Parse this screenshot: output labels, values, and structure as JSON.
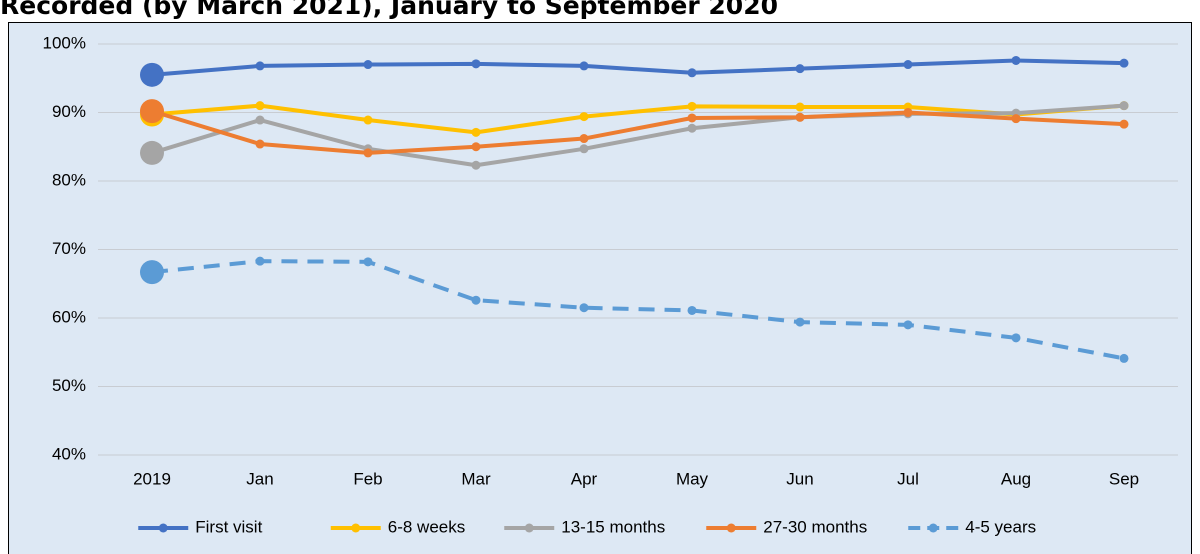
{
  "chart_data": {
    "type": "line",
    "title": "Recorded (by March 2021), January to September 2020",
    "categories": [
      "2019",
      "Jan",
      "Feb",
      "Mar",
      "Apr",
      "May",
      "Jun",
      "Jul",
      "Aug",
      "Sep"
    ],
    "series": [
      {
        "name": "First visit",
        "color": "#4472c4",
        "values": [
          95.5,
          96.8,
          97.0,
          97.1,
          96.8,
          95.8,
          96.4,
          97.0,
          97.6,
          97.2
        ]
      },
      {
        "name": "6-8 weeks",
        "color": "#ffc000",
        "values": [
          89.7,
          91.0,
          88.9,
          87.1,
          89.4,
          90.9,
          90.8,
          90.8,
          89.7,
          91.0
        ]
      },
      {
        "name": "13-15 months",
        "color": "#a5a5a5",
        "values": [
          84.1,
          88.9,
          84.7,
          82.3,
          84.7,
          87.7,
          89.3,
          89.8,
          89.9,
          91.0
        ]
      },
      {
        "name": "27-30 months",
        "color": "#ed7d31",
        "values": [
          90.2,
          85.4,
          84.1,
          85.0,
          86.2,
          89.2,
          89.3,
          90.0,
          89.1,
          88.3
        ]
      },
      {
        "name": "4-5 years",
        "color": "#5b9bd5",
        "dashed": true,
        "values": [
          66.7,
          68.3,
          68.2,
          62.6,
          61.5,
          61.1,
          59.4,
          59.0,
          57.1,
          54.1
        ]
      }
    ],
    "ylim": [
      40,
      100
    ],
    "yticks": [
      {
        "value": 40,
        "label": "40%"
      },
      {
        "value": 50,
        "label": "50%"
      },
      {
        "value": 60,
        "label": "60%"
      },
      {
        "value": 70,
        "label": "70%"
      },
      {
        "value": 80,
        "label": "80%"
      },
      {
        "value": 90,
        "label": "90%"
      },
      {
        "value": 100,
        "label": "100%"
      }
    ],
    "grid": true,
    "legend": "bottom"
  }
}
